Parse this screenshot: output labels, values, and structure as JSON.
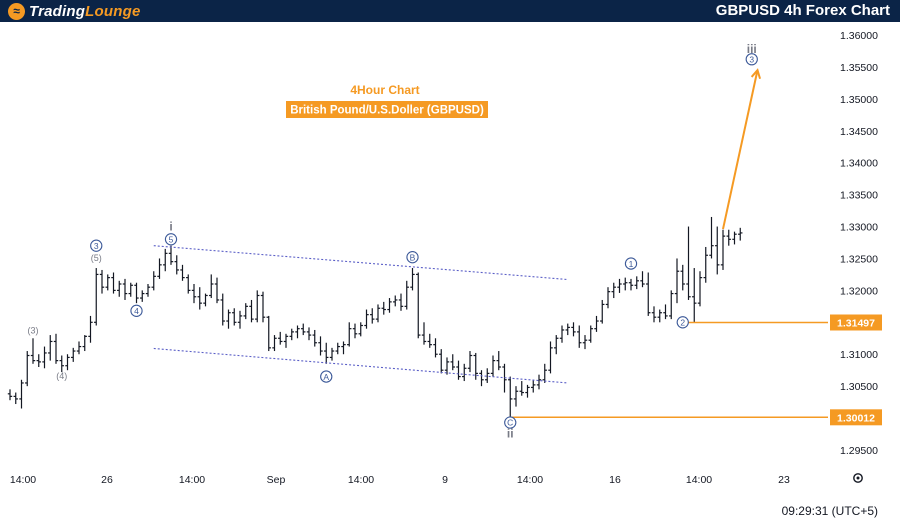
{
  "header": {
    "logo_prefix": "Trading",
    "logo_suffix": "Lounge",
    "title": "GBPUSD 4h Forex Chart"
  },
  "chart_labels": {
    "heading": "4Hour Chart",
    "subheading": "British Pound/U.S.Doller (GBPUSD)"
  },
  "footer": {
    "clock": "09:29:31 (UTC+5)"
  },
  "colors": {
    "header_bg": "#0b2447",
    "accent": "#f59a23",
    "candle": "#131722",
    "channel": "#5b5fc7",
    "wave_circle": "#3d5a99",
    "wave_text_grey": "#787b86"
  },
  "chart_data": {
    "type": "candlestick",
    "title": "GBPUSD 4h Forex Chart",
    "timeframe": "4h",
    "instrument": "British Pound/U.S.Doller (GBPUSD)",
    "y_axis": {
      "position": "right",
      "range": [
        1.2925,
        1.3615
      ],
      "ticks": [
        "1.36000",
        "1.35500",
        "1.35000",
        "1.34500",
        "1.34000",
        "1.33500",
        "1.33000",
        "1.32500",
        "1.32000",
        "1.31500",
        "1.31000",
        "1.30500",
        "1.30000",
        "1.29500"
      ]
    },
    "x_axis": {
      "ticks": [
        "14:00",
        "26",
        "14:00",
        "Sep",
        "14:00",
        "9",
        "14:00",
        "16",
        "14:00",
        "23"
      ]
    },
    "price_labels": [
      {
        "value": 1.31497,
        "text": "1.31497"
      },
      {
        "value": 1.30012,
        "text": "1.30012"
      }
    ],
    "horizontal_levels": [
      {
        "value": 1.31497,
        "from_bar": 117
      },
      {
        "value": 1.30012,
        "from_bar": 87
      }
    ],
    "wave_labels": [
      {
        "text": "(3)",
        "bar": 4,
        "price": 1.3137,
        "style": "plain"
      },
      {
        "text": "(4)",
        "bar": 9,
        "price": 1.3066,
        "style": "plain"
      },
      {
        "text": "3",
        "bar": 15,
        "price": 1.327,
        "style": "circle"
      },
      {
        "text": "(5)",
        "bar": 15,
        "price": 1.3251,
        "style": "plain"
      },
      {
        "text": "4",
        "bar": 22,
        "price": 1.3168,
        "style": "circle"
      },
      {
        "text": "i",
        "bar": 28,
        "price": 1.33,
        "style": "roman"
      },
      {
        "text": "5",
        "bar": 28,
        "price": 1.328,
        "style": "circle"
      },
      {
        "text": "A",
        "bar": 55,
        "price": 1.3065,
        "style": "circle"
      },
      {
        "text": "B",
        "bar": 70,
        "price": 1.3252,
        "style": "circle"
      },
      {
        "text": "C",
        "bar": 87,
        "price": 1.2993,
        "style": "circle"
      },
      {
        "text": "ii",
        "bar": 87,
        "price": 1.2976,
        "style": "roman"
      },
      {
        "text": "1",
        "bar": 108,
        "price": 1.3242,
        "style": "circle"
      },
      {
        "text": "2",
        "bar": 117,
        "price": 1.315,
        "style": "circle"
      },
      {
        "text": "iii",
        "bar": 129,
        "price": 1.3578,
        "style": "roman"
      },
      {
        "text": "3",
        "bar": 129,
        "price": 1.3562,
        "style": "circle"
      }
    ],
    "channel_lines": [
      {
        "from": {
          "bar": 25,
          "price": 1.327
        },
        "to": {
          "bar": 97,
          "price": 1.3217
        }
      },
      {
        "from": {
          "bar": 25,
          "price": 1.3109
        },
        "to": {
          "bar": 97,
          "price": 1.3055
        }
      }
    ],
    "projection_arrow": {
      "from": {
        "bar": 124,
        "price": 1.3296
      },
      "to": {
        "bar": 130,
        "price": 1.3545
      }
    },
    "candles_ohlc": [
      [
        1.3038,
        1.3045,
        1.3028,
        1.3034
      ],
      [
        1.3034,
        1.304,
        1.3022,
        1.303
      ],
      [
        1.303,
        1.306,
        1.3015,
        1.3055
      ],
      [
        1.3055,
        1.3105,
        1.305,
        1.3098
      ],
      [
        1.3098,
        1.3125,
        1.3085,
        1.309
      ],
      [
        1.309,
        1.31,
        1.308,
        1.3088
      ],
      [
        1.3088,
        1.3112,
        1.3078,
        1.3102
      ],
      [
        1.3102,
        1.313,
        1.309,
        1.312
      ],
      [
        1.312,
        1.3132,
        1.3085,
        1.309
      ],
      [
        1.309,
        1.3098,
        1.3072,
        1.3082
      ],
      [
        1.3082,
        1.31,
        1.3075,
        1.3095
      ],
      [
        1.3095,
        1.311,
        1.3088,
        1.3105
      ],
      [
        1.3105,
        1.312,
        1.31,
        1.3112
      ],
      [
        1.3112,
        1.313,
        1.3105,
        1.3128
      ],
      [
        1.3128,
        1.316,
        1.3118,
        1.315
      ],
      [
        1.315,
        1.3235,
        1.3145,
        1.3225
      ],
      [
        1.3225,
        1.3232,
        1.3195,
        1.3205
      ],
      [
        1.3205,
        1.3225,
        1.32,
        1.322
      ],
      [
        1.322,
        1.3228,
        1.3195,
        1.32
      ],
      [
        1.32,
        1.3215,
        1.319,
        1.321
      ],
      [
        1.321,
        1.3218,
        1.3185,
        1.3195
      ],
      [
        1.3195,
        1.3212,
        1.319,
        1.3208
      ],
      [
        1.3208,
        1.3212,
        1.318,
        1.3188
      ],
      [
        1.3188,
        1.32,
        1.3182,
        1.3195
      ],
      [
        1.3195,
        1.321,
        1.319,
        1.3205
      ],
      [
        1.3205,
        1.323,
        1.32,
        1.3222
      ],
      [
        1.3222,
        1.325,
        1.3218,
        1.324
      ],
      [
        1.324,
        1.3265,
        1.323,
        1.3258
      ],
      [
        1.3258,
        1.327,
        1.324,
        1.3245
      ],
      [
        1.3245,
        1.3255,
        1.3225,
        1.3232
      ],
      [
        1.3232,
        1.324,
        1.3215,
        1.322
      ],
      [
        1.322,
        1.3225,
        1.3195,
        1.32
      ],
      [
        1.32,
        1.321,
        1.318,
        1.319
      ],
      [
        1.319,
        1.3205,
        1.317,
        1.318
      ],
      [
        1.318,
        1.3195,
        1.3175,
        1.3192
      ],
      [
        1.3192,
        1.3225,
        1.3188,
        1.321
      ],
      [
        1.321,
        1.322,
        1.318,
        1.3185
      ],
      [
        1.3185,
        1.3195,
        1.3145,
        1.3152
      ],
      [
        1.3152,
        1.317,
        1.314,
        1.3165
      ],
      [
        1.3165,
        1.3172,
        1.3145,
        1.315
      ],
      [
        1.315,
        1.3168,
        1.314,
        1.316
      ],
      [
        1.316,
        1.318,
        1.3155,
        1.3175
      ],
      [
        1.3175,
        1.3185,
        1.315,
        1.3155
      ],
      [
        1.3155,
        1.32,
        1.315,
        1.3192
      ],
      [
        1.3192,
        1.3198,
        1.315,
        1.3158
      ],
      [
        1.3158,
        1.316,
        1.3105,
        1.311
      ],
      [
        1.311,
        1.313,
        1.3105,
        1.3125
      ],
      [
        1.3125,
        1.3135,
        1.3115,
        1.312
      ],
      [
        1.312,
        1.3132,
        1.311,
        1.3128
      ],
      [
        1.3128,
        1.314,
        1.3122,
        1.3135
      ],
      [
        1.3135,
        1.3145,
        1.3125,
        1.314
      ],
      [
        1.314,
        1.3148,
        1.313,
        1.3135
      ],
      [
        1.3135,
        1.3142,
        1.3122,
        1.313
      ],
      [
        1.313,
        1.3138,
        1.3112,
        1.3118
      ],
      [
        1.3118,
        1.3128,
        1.3098,
        1.3105
      ],
      [
        1.3105,
        1.3118,
        1.3085,
        1.3095
      ],
      [
        1.3095,
        1.311,
        1.309,
        1.3105
      ],
      [
        1.3105,
        1.3118,
        1.31,
        1.3112
      ],
      [
        1.3112,
        1.312,
        1.31,
        1.3115
      ],
      [
        1.3115,
        1.315,
        1.3112,
        1.314
      ],
      [
        1.314,
        1.3148,
        1.3125,
        1.3132
      ],
      [
        1.3132,
        1.315,
        1.3128,
        1.3145
      ],
      [
        1.3145,
        1.317,
        1.314,
        1.3162
      ],
      [
        1.3162,
        1.3172,
        1.3148,
        1.3155
      ],
      [
        1.3155,
        1.3178,
        1.315,
        1.3172
      ],
      [
        1.3172,
        1.3182,
        1.3162,
        1.317
      ],
      [
        1.317,
        1.3188,
        1.3165,
        1.3182
      ],
      [
        1.3182,
        1.3192,
        1.3175,
        1.3185
      ],
      [
        1.3185,
        1.3195,
        1.3168,
        1.3175
      ],
      [
        1.3175,
        1.3215,
        1.317,
        1.3205
      ],
      [
        1.3205,
        1.3235,
        1.32,
        1.3225
      ],
      [
        1.3225,
        1.3228,
        1.3125,
        1.313
      ],
      [
        1.313,
        1.315,
        1.3115,
        1.312
      ],
      [
        1.312,
        1.3132,
        1.311,
        1.3115
      ],
      [
        1.3115,
        1.3125,
        1.3095,
        1.31
      ],
      [
        1.31,
        1.3108,
        1.307,
        1.3075
      ],
      [
        1.3075,
        1.3095,
        1.3068,
        1.3088
      ],
      [
        1.3088,
        1.31,
        1.3075,
        1.308
      ],
      [
        1.308,
        1.309,
        1.306,
        1.3065
      ],
      [
        1.3065,
        1.3085,
        1.3058,
        1.3078
      ],
      [
        1.3078,
        1.3105,
        1.3072,
        1.3098
      ],
      [
        1.3098,
        1.3102,
        1.306,
        1.307
      ],
      [
        1.307,
        1.3075,
        1.305,
        1.306
      ],
      [
        1.306,
        1.3078,
        1.3055,
        1.307
      ],
      [
        1.307,
        1.3098,
        1.3065,
        1.309
      ],
      [
        1.309,
        1.3105,
        1.3075,
        1.308
      ],
      [
        1.308,
        1.3085,
        1.304,
        1.306
      ],
      [
        1.306,
        1.3065,
        1.3001,
        1.303
      ],
      [
        1.303,
        1.305,
        1.3018,
        1.3042
      ],
      [
        1.3042,
        1.3058,
        1.3035,
        1.304
      ],
      [
        1.304,
        1.3052,
        1.3032,
        1.3048
      ],
      [
        1.3048,
        1.306,
        1.304,
        1.3052
      ],
      [
        1.3052,
        1.3068,
        1.3045,
        1.306
      ],
      [
        1.306,
        1.3085,
        1.3055,
        1.3075
      ],
      [
        1.3075,
        1.312,
        1.307,
        1.311
      ],
      [
        1.311,
        1.313,
        1.31,
        1.3125
      ],
      [
        1.3125,
        1.3145,
        1.3118,
        1.3138
      ],
      [
        1.3138,
        1.3148,
        1.313,
        1.3142
      ],
      [
        1.3142,
        1.315,
        1.3128,
        1.3135
      ],
      [
        1.3135,
        1.3145,
        1.311,
        1.3118
      ],
      [
        1.3118,
        1.313,
        1.3108,
        1.3122
      ],
      [
        1.3122,
        1.3145,
        1.3118,
        1.314
      ],
      [
        1.314,
        1.316,
        1.3135,
        1.3152
      ],
      [
        1.3152,
        1.3185,
        1.3148,
        1.3178
      ],
      [
        1.3178,
        1.3205,
        1.3172,
        1.3198
      ],
      [
        1.3198,
        1.3212,
        1.3188,
        1.3205
      ],
      [
        1.3205,
        1.3218,
        1.3196,
        1.321
      ],
      [
        1.321,
        1.322,
        1.32,
        1.3212
      ],
      [
        1.3212,
        1.3218,
        1.32,
        1.3208
      ],
      [
        1.3208,
        1.3222,
        1.3202,
        1.3215
      ],
      [
        1.3215,
        1.323,
        1.3205,
        1.321
      ],
      [
        1.321,
        1.3228,
        1.316,
        1.3165
      ],
      [
        1.3165,
        1.3175,
        1.315,
        1.3158
      ],
      [
        1.3158,
        1.317,
        1.315,
        1.3165
      ],
      [
        1.3165,
        1.3178,
        1.3155,
        1.316
      ],
      [
        1.316,
        1.32,
        1.3155,
        1.3195
      ],
      [
        1.3195,
        1.325,
        1.318,
        1.323
      ],
      [
        1.323,
        1.324,
        1.32,
        1.321
      ],
      [
        1.321,
        1.33,
        1.3185,
        1.319
      ],
      [
        1.319,
        1.3235,
        1.315,
        1.318
      ],
      [
        1.318,
        1.323,
        1.3175,
        1.322
      ],
      [
        1.322,
        1.3268,
        1.3212,
        1.3255
      ],
      [
        1.3255,
        1.3315,
        1.325,
        1.327
      ],
      [
        1.327,
        1.33,
        1.3225,
        1.324
      ],
      [
        1.324,
        1.3295,
        1.3232,
        1.3285
      ],
      [
        1.3285,
        1.3295,
        1.327,
        1.328
      ],
      [
        1.328,
        1.3292,
        1.3272,
        1.3288
      ],
      [
        1.3288,
        1.3298,
        1.3278,
        1.329
      ]
    ]
  }
}
